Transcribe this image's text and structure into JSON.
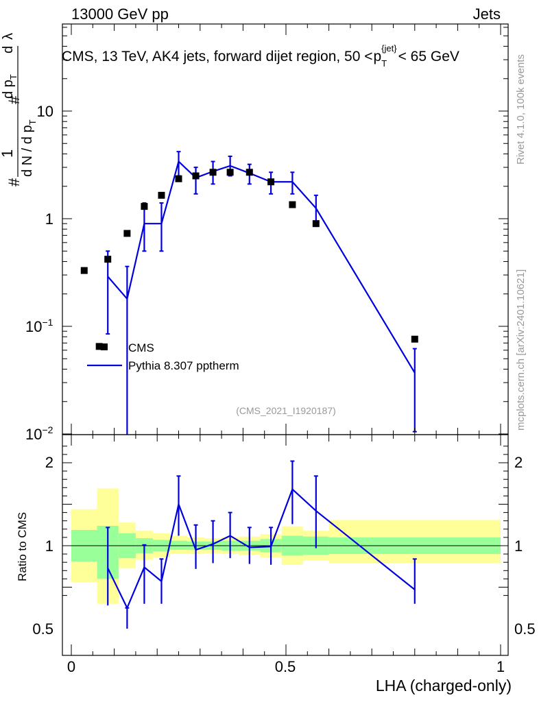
{
  "header": {
    "energy_label": "13000 GeV pp",
    "category_label": "Jets",
    "title_prefix": "CMS, 13 TeV, AK4 jets, forward dijet region, 50 <",
    "title_p": "p",
    "title_sub": "T",
    "title_sup": "{jet}",
    "title_suffix": "< 65 GeV",
    "analysis_id": "(CMS_2021_I1920187)"
  },
  "side_labels": {
    "rivet": "Rivet 4.1.0,  100k events",
    "site": "mcplots.cern.ch [arXiv:2401.10621]"
  },
  "legend": {
    "data_label": "CMS",
    "mc_label": "Pythia 8.307 pptherm"
  },
  "colors": {
    "mc": "#0000dd",
    "band_inner": "#99ff99",
    "band_outer": "#ffff99",
    "data": "#000000"
  },
  "chart_data": [
    {
      "type": "scatter",
      "panel": "main",
      "xlabel": "LHA (charged-only)",
      "ylabel": "1/N dN/dλ (normalised)",
      "yscale": "log",
      "ylim": [
        0.01,
        60
      ],
      "xlim": [
        -0.02,
        1.02
      ],
      "ytick_labels": [
        "10^{-2}",
        "10^{-1}",
        "1",
        "10"
      ],
      "series": [
        {
          "name": "CMS",
          "points": [
            {
              "x": 0.03,
              "y": 0.33
            },
            {
              "x": 0.085,
              "y": 0.42
            },
            {
              "x": 0.065,
              "y": 0.065
            },
            {
              "x": 0.13,
              "y": 0.73
            },
            {
              "x": 0.17,
              "y": 1.3
            },
            {
              "x": 0.21,
              "y": 1.65
            },
            {
              "x": 0.25,
              "y": 2.35
            },
            {
              "x": 0.29,
              "y": 2.5
            },
            {
              "x": 0.33,
              "y": 2.7
            },
            {
              "x": 0.37,
              "y": 2.7
            },
            {
              "x": 0.415,
              "y": 2.7
            },
            {
              "x": 0.465,
              "y": 2.2
            },
            {
              "x": 0.515,
              "y": 1.35
            },
            {
              "x": 0.57,
              "y": 0.9
            },
            {
              "x": 0.8,
              "y": 0.076
            }
          ]
        },
        {
          "name": "Pythia 8.307 pptherm",
          "points": [
            {
              "x": 0.085,
              "y": 0.29,
              "ylo": 0.085,
              "yhi": 0.5
            },
            {
              "x": 0.13,
              "y": 0.18,
              "ylo": 0.0095,
              "yhi": 0.36
            },
            {
              "x": 0.17,
              "y": 0.9,
              "ylo": 0.5,
              "yhi": 1.4
            },
            {
              "x": 0.21,
              "y": 0.9,
              "ylo": 0.5,
              "yhi": 1.4
            },
            {
              "x": 0.25,
              "y": 3.4,
              "ylo": 2.5,
              "yhi": 4.2
            },
            {
              "x": 0.29,
              "y": 2.4,
              "ylo": 1.7,
              "yhi": 3.0
            },
            {
              "x": 0.33,
              "y": 2.75,
              "ylo": 2.1,
              "yhi": 3.4
            },
            {
              "x": 0.37,
              "y": 3.1,
              "ylo": 2.5,
              "yhi": 3.8
            },
            {
              "x": 0.415,
              "y": 2.65,
              "ylo": 2.1,
              "yhi": 3.2
            },
            {
              "x": 0.465,
              "y": 2.2,
              "ylo": 1.7,
              "yhi": 2.7
            },
            {
              "x": 0.515,
              "y": 2.2,
              "ylo": 1.7,
              "yhi": 2.7
            },
            {
              "x": 0.57,
              "y": 1.25,
              "ylo": 0.85,
              "yhi": 1.65
            },
            {
              "x": 0.8,
              "y": 0.037,
              "ylo": 0.0105,
              "yhi": 0.062
            }
          ]
        }
      ]
    },
    {
      "type": "line",
      "panel": "ratio",
      "ylabel": "Ratio to CMS",
      "ylim": [
        0.35,
        2.25
      ],
      "ytick_labels": [
        "0.5",
        "1",
        "2"
      ],
      "xtick_labels": [
        "0",
        "0.5",
        "1"
      ],
      "bands": [
        {
          "x0": 0.0,
          "x1": 0.06,
          "inner": [
            0.81,
            1.19
          ],
          "outer": [
            0.56,
            1.44
          ]
        },
        {
          "x0": 0.06,
          "x1": 0.11,
          "inner": [
            0.6,
            1.24
          ],
          "outer": [
            0.3,
            1.69
          ]
        },
        {
          "x0": 0.11,
          "x1": 0.15,
          "inner": [
            0.85,
            1.15
          ],
          "outer": [
            0.73,
            1.28
          ]
        },
        {
          "x0": 0.15,
          "x1": 0.19,
          "inner": [
            0.91,
            1.09
          ],
          "outer": [
            0.83,
            1.18
          ]
        },
        {
          "x0": 0.19,
          "x1": 0.23,
          "inner": [
            0.93,
            1.07
          ],
          "outer": [
            0.86,
            1.15
          ]
        },
        {
          "x0": 0.23,
          "x1": 0.27,
          "inner": [
            0.95,
            1.06
          ],
          "outer": [
            0.9,
            1.12
          ]
        },
        {
          "x0": 0.27,
          "x1": 0.31,
          "inner": [
            0.95,
            1.05
          ],
          "outer": [
            0.9,
            1.1
          ]
        },
        {
          "x0": 0.31,
          "x1": 0.35,
          "inner": [
            0.95,
            1.05
          ],
          "outer": [
            0.91,
            1.09
          ]
        },
        {
          "x0": 0.35,
          "x1": 0.39,
          "inner": [
            0.94,
            1.06
          ],
          "outer": [
            0.9,
            1.1
          ]
        },
        {
          "x0": 0.39,
          "x1": 0.44,
          "inner": [
            0.94,
            1.06
          ],
          "outer": [
            0.89,
            1.11
          ]
        },
        {
          "x0": 0.44,
          "x1": 0.49,
          "inner": [
            0.92,
            1.08
          ],
          "outer": [
            0.86,
            1.14
          ]
        },
        {
          "x0": 0.49,
          "x1": 0.54,
          "inner": [
            0.88,
            1.12
          ],
          "outer": [
            0.77,
            1.23
          ]
        },
        {
          "x0": 0.54,
          "x1": 0.6,
          "inner": [
            0.89,
            1.11
          ],
          "outer": [
            0.82,
            1.18
          ]
        },
        {
          "x0": 0.6,
          "x1": 1.0,
          "inner": [
            0.9,
            1.1
          ],
          "outer": [
            0.79,
            1.31
          ]
        }
      ],
      "series": [
        {
          "name": "Pythia 8.307 pptherm / CMS",
          "points": [
            {
              "x": 0.085,
              "y": 0.73,
              "ylo": 0.28,
              "yhi": 1.22
            },
            {
              "x": 0.13,
              "y": 0.25,
              "ylo": 0.0,
              "yhi": 0.25
            },
            {
              "x": 0.17,
              "y": 0.74,
              "ylo": 0.3,
              "yhi": 1.01
            },
            {
              "x": 0.21,
              "y": 0.57,
              "ylo": 0.3,
              "yhi": 0.84
            },
            {
              "x": 0.25,
              "y": 1.5,
              "ylo": 1.12,
              "yhi": 1.84
            },
            {
              "x": 0.29,
              "y": 0.95,
              "ylo": 0.72,
              "yhi": 1.25
            },
            {
              "x": 0.33,
              "y": 1.02,
              "ylo": 0.79,
              "yhi": 1.3
            },
            {
              "x": 0.37,
              "y": 1.12,
              "ylo": 0.85,
              "yhi": 1.4
            },
            {
              "x": 0.415,
              "y": 0.98,
              "ylo": 0.78,
              "yhi": 1.22
            },
            {
              "x": 0.465,
              "y": 0.99,
              "ylo": 0.77,
              "yhi": 1.22
            },
            {
              "x": 0.515,
              "y": 1.68,
              "ylo": 1.26,
              "yhi": 2.02
            },
            {
              "x": 0.57,
              "y": 1.42,
              "ylo": 0.97,
              "yhi": 1.84
            },
            {
              "x": 0.8,
              "y": 0.47,
              "ylo": 0.3,
              "yhi": 0.84
            }
          ]
        }
      ]
    }
  ]
}
